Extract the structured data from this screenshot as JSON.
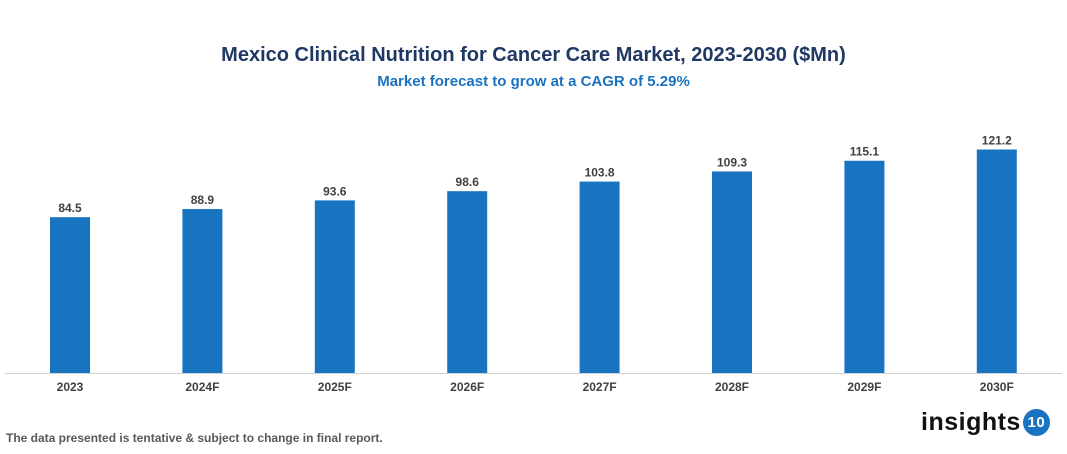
{
  "chart_data": {
    "type": "bar",
    "title": "Mexico Clinical Nutrition for Cancer Care Market, 2023-2030 ($Mn)",
    "subtitle": "Market forecast to grow at a CAGR of 5.29%",
    "categories": [
      "2023",
      "2024F",
      "2025F",
      "2026F",
      "2027F",
      "2028F",
      "2029F",
      "2030F"
    ],
    "values": [
      84.5,
      88.9,
      93.6,
      98.6,
      103.8,
      109.3,
      115.1,
      121.2
    ],
    "xlabel": "",
    "ylabel": "",
    "ylim": [
      0,
      121.2
    ],
    "grid": false,
    "legend": "none",
    "bar_color": "#1874c1"
  },
  "footer": {
    "note": "The data presented is tentative & subject to change in final report.",
    "logo_text": "insights",
    "logo_number": "10"
  }
}
